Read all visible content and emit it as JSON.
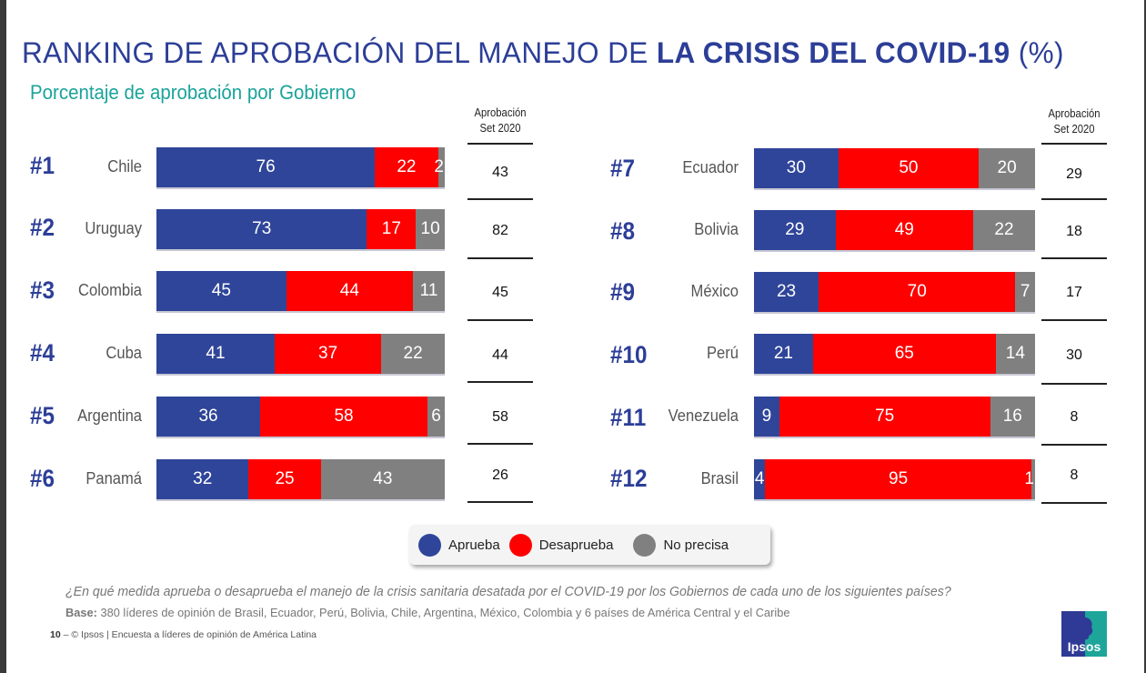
{
  "title": {
    "normal": "RANKING DE APROBACIÓN DEL MANEJO DE ",
    "bold": "LA CRISIS DEL COVID-19",
    "suffix": " (%)"
  },
  "subtitle": "Porcentaje de aprobación por Gobierno",
  "set_column_header": {
    "line1": "Aprobación",
    "line2": "Set 2020"
  },
  "legend": {
    "items": [
      {
        "label": "Aprueba",
        "color": "#2f4599"
      },
      {
        "label": "Desaprueba",
        "color": "#ff0000"
      },
      {
        "label": "No precisa",
        "color": "#808080"
      }
    ]
  },
  "question": "¿En qué medida aprueba o desaprueba el manejo de la crisis sanitaria desatada por el COVID-19 por los Gobiernos de cada uno de los siguientes países?",
  "base": {
    "label": "Base:",
    "text": " 380 líderes de opinión de Brasil, Ecuador, Perú, Bolivia, Chile, Argentina, México, Colombia y 6 países de América Central y el Caribe"
  },
  "footer": {
    "page": "10",
    "separator": " –  ",
    "text": "© Ipsos | Encuesta a líderes de opinión de América Latina"
  },
  "logo": {
    "text": "Ipsos",
    "colors": {
      "left": "#2f3a96",
      "right": "#1ea59a"
    }
  },
  "chart_data": {
    "type": "bar",
    "orientation": "horizontal",
    "stacked": true,
    "title": "RANKING DE APROBACIÓN DEL MANEJO DE LA CRISIS DEL COVID-19 (%)",
    "subtitle": "Porcentaje de aprobación por Gobierno",
    "xlim": [
      0,
      100
    ],
    "unit": "%",
    "legend_position": "bottom-center",
    "series_names": [
      "Aprueba",
      "Desaprueba",
      "No precisa"
    ],
    "series_colors": [
      "#2f4599",
      "#ff0000",
      "#808080"
    ],
    "extra_column": "Aprobación Set 2020",
    "rows": [
      {
        "rank": "#1",
        "country": "Chile",
        "aprueba": 76,
        "desaprueba": 22,
        "no_precisa": 2,
        "set_2020": 43
      },
      {
        "rank": "#2",
        "country": "Uruguay",
        "aprueba": 73,
        "desaprueba": 17,
        "no_precisa": 10,
        "set_2020": 82
      },
      {
        "rank": "#3",
        "country": "Colombia",
        "aprueba": 45,
        "desaprueba": 44,
        "no_precisa": 11,
        "set_2020": 45
      },
      {
        "rank": "#4",
        "country": "Cuba",
        "aprueba": 41,
        "desaprueba": 37,
        "no_precisa": 22,
        "set_2020": 44
      },
      {
        "rank": "#5",
        "country": "Argentina",
        "aprueba": 36,
        "desaprueba": 58,
        "no_precisa": 6,
        "set_2020": 58
      },
      {
        "rank": "#6",
        "country": "Panamá",
        "aprueba": 32,
        "desaprueba": 25,
        "no_precisa": 43,
        "set_2020": 26
      },
      {
        "rank": "#7",
        "country": "Ecuador",
        "aprueba": 30,
        "desaprueba": 50,
        "no_precisa": 20,
        "set_2020": 29
      },
      {
        "rank": "#8",
        "country": "Bolivia",
        "aprueba": 29,
        "desaprueba": 49,
        "no_precisa": 22,
        "set_2020": 18
      },
      {
        "rank": "#9",
        "country": "México",
        "aprueba": 23,
        "desaprueba": 70,
        "no_precisa": 7,
        "set_2020": 17
      },
      {
        "rank": "#10",
        "country": "Perú",
        "aprueba": 21,
        "desaprueba": 65,
        "no_precisa": 14,
        "set_2020": 30
      },
      {
        "rank": "#11",
        "country": "Venezuela",
        "aprueba": 9,
        "desaprueba": 75,
        "no_precisa": 16,
        "set_2020": 8
      },
      {
        "rank": "#12",
        "country": "Brasil",
        "aprueba": 4,
        "desaprueba": 95,
        "no_precisa": 1,
        "set_2020": 8
      }
    ]
  }
}
